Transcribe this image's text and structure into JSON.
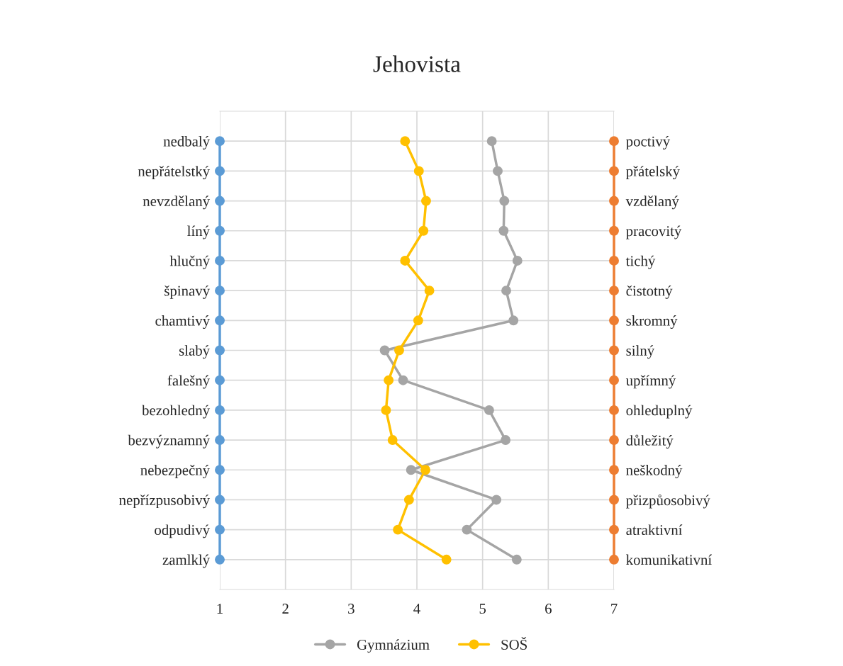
{
  "chart_data": {
    "type": "line",
    "title": "Jehovista",
    "orientation": "horizontal",
    "categories": [
      "nedbalý",
      "nepřátelstký",
      "nevzdělaný",
      "líný",
      "hlučný",
      "špinavý",
      "chamtivý",
      "slabý",
      "falešný",
      "bezohledný",
      "bezvýznamný",
      "nebezpečný",
      "nepřízpusobivý",
      "odpudivý",
      "zamlklý"
    ],
    "y2_categories": [
      "poctivý",
      "přátelský",
      "vzdělaný",
      "pracovitý",
      "tichý",
      "čistotný",
      "skromný",
      "silný",
      "upřímný",
      "ohleduplný",
      "důležitý",
      "neškodný",
      "přizpůosobivý",
      "atraktivní",
      "komunikativní"
    ],
    "series": [
      {
        "color": "#5b9bd5",
        "values": [
          1,
          1,
          1,
          1,
          1,
          1,
          1,
          1,
          1,
          1,
          1,
          1,
          1,
          1,
          1
        ]
      },
      {
        "color": "#ed7d31",
        "values": [
          7,
          7,
          7,
          7,
          7,
          7,
          7,
          7,
          7,
          7,
          7,
          7,
          7,
          7,
          7
        ]
      },
      {
        "name": "Gymnázium",
        "color": "#a5a5a5",
        "values": [
          5.14,
          5.23,
          5.33,
          5.32,
          5.53,
          5.36,
          5.47,
          3.51,
          3.79,
          5.1,
          5.35,
          3.91,
          5.21,
          4.76,
          5.52
        ]
      },
      {
        "name": "SOŠ",
        "color": "#ffc000",
        "values": [
          3.82,
          4.03,
          4.14,
          4.1,
          3.82,
          4.19,
          4.02,
          3.73,
          3.57,
          3.53,
          3.63,
          4.13,
          3.88,
          3.71,
          4.45
        ]
      }
    ],
    "xlim": [
      1,
      7
    ],
    "xticks": [
      1,
      2,
      3,
      4,
      5,
      6,
      7
    ],
    "grid": true,
    "legend": "bottom",
    "marker": "circle",
    "line_style": "solid"
  }
}
